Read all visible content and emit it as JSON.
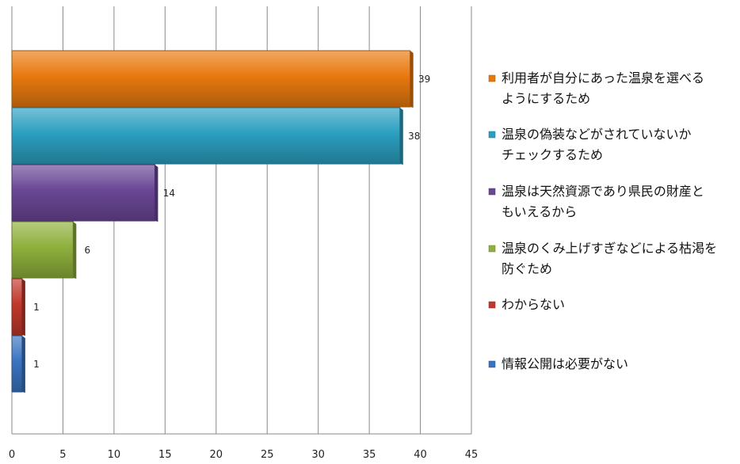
{
  "chart_data": {
    "type": "bar",
    "orientation": "horizontal",
    "grid": true,
    "legend_position": "right",
    "xlim": [
      0,
      45
    ],
    "xticks": [
      0,
      5,
      10,
      15,
      20,
      25,
      30,
      35,
      40,
      45
    ],
    "bars": [
      {
        "label": "利用者が自分にあった温泉を選べるようにするため",
        "value": 39,
        "color": "#e8790f"
      },
      {
        "label": "温泉の偽装などがされていないかチェックするため",
        "value": 38,
        "color": "#2c9fc0"
      },
      {
        "label": "温泉は天然資源であり県民の財産ともいえるから",
        "value": 14,
        "color": "#6a4796"
      },
      {
        "label": "温泉のくみ上げすぎなどによる枯渇を防ぐため",
        "value": 6,
        "color": "#8fb03c"
      },
      {
        "label": "わからない",
        "value": 1,
        "color": "#c0392b"
      },
      {
        "label": "情報公開は必要がない",
        "value": 1,
        "color": "#3a74c0"
      }
    ],
    "legend": [
      {
        "lines": [
          "利用者が自分にあった温泉を選べる",
          "ようにするため"
        ],
        "color": "#e8790f"
      },
      {
        "lines": [
          "温泉の偽装などがされていないか",
          "チェックするため"
        ],
        "color": "#2c9fc0"
      },
      {
        "lines": [
          "温泉は天然資源であり県民の財産と",
          "もいえるから"
        ],
        "color": "#6a4796"
      },
      {
        "lines": [
          "温泉のくみ上げすぎなどによる枯渇を",
          "防ぐため"
        ],
        "color": "#8fb03c"
      },
      {
        "lines": [
          "わからない"
        ],
        "color": "#c0392b"
      },
      {
        "lines": [
          "情報公開は必要がない"
        ],
        "color": "#3a74c0"
      }
    ]
  }
}
